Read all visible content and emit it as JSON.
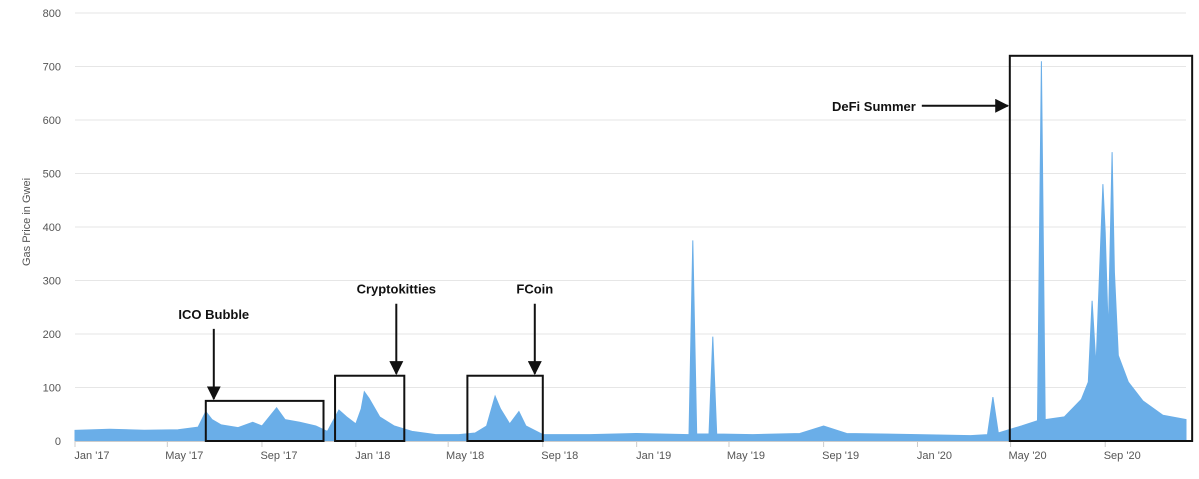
{
  "chart_data": {
    "type": "area",
    "title": "",
    "xlabel": "",
    "ylabel": "Gas Price in Gwei",
    "ylim": [
      0,
      800
    ],
    "y_ticks": [
      0,
      100,
      200,
      300,
      400,
      500,
      600,
      700,
      800
    ],
    "x_range": [
      "2017-01-01",
      "2020-12-15"
    ],
    "x_ticks": [
      {
        "date": "2017-01-01",
        "label": "Jan '17"
      },
      {
        "date": "2017-05-01",
        "label": "May '17"
      },
      {
        "date": "2017-09-01",
        "label": "Sep '17"
      },
      {
        "date": "2018-01-01",
        "label": "Jan '18"
      },
      {
        "date": "2018-05-01",
        "label": "May '18"
      },
      {
        "date": "2018-09-01",
        "label": "Sep '18"
      },
      {
        "date": "2019-01-01",
        "label": "Jan '19"
      },
      {
        "date": "2019-05-01",
        "label": "May '19"
      },
      {
        "date": "2019-09-01",
        "label": "Sep '19"
      },
      {
        "date": "2020-01-01",
        "label": "Jan '20"
      },
      {
        "date": "2020-05-01",
        "label": "May '20"
      },
      {
        "date": "2020-09-01",
        "label": "Sep '20"
      }
    ],
    "grid": "horizontal",
    "series_color": "#6aaee8",
    "series": [
      {
        "values": [
          [
            "2017-01-01",
            20
          ],
          [
            "2017-02-15",
            22
          ],
          [
            "2017-04-01",
            20
          ],
          [
            "2017-05-15",
            21
          ],
          [
            "2017-06-10",
            26
          ],
          [
            "2017-06-20",
            55
          ],
          [
            "2017-06-28",
            40
          ],
          [
            "2017-07-10",
            30
          ],
          [
            "2017-08-01",
            25
          ],
          [
            "2017-08-20",
            35
          ],
          [
            "2017-09-01",
            28
          ],
          [
            "2017-09-20",
            62
          ],
          [
            "2017-10-01",
            40
          ],
          [
            "2017-10-20",
            35
          ],
          [
            "2017-11-10",
            28
          ],
          [
            "2017-11-25",
            18
          ],
          [
            "2017-12-10",
            58
          ],
          [
            "2017-12-20",
            45
          ],
          [
            "2018-01-01",
            32
          ],
          [
            "2018-01-08",
            60
          ],
          [
            "2018-01-12",
            92
          ],
          [
            "2018-01-18",
            80
          ],
          [
            "2018-02-01",
            45
          ],
          [
            "2018-02-20",
            28
          ],
          [
            "2018-03-15",
            18
          ],
          [
            "2018-04-15",
            12
          ],
          [
            "2018-05-15",
            12
          ],
          [
            "2018-06-05",
            15
          ],
          [
            "2018-06-20",
            28
          ],
          [
            "2018-07-01",
            84
          ],
          [
            "2018-07-08",
            60
          ],
          [
            "2018-07-20",
            32
          ],
          [
            "2018-08-01",
            55
          ],
          [
            "2018-08-10",
            28
          ],
          [
            "2018-09-01",
            12
          ],
          [
            "2018-11-01",
            12
          ],
          [
            "2019-01-01",
            14
          ],
          [
            "2019-03-10",
            12
          ],
          [
            "2019-03-15",
            375
          ],
          [
            "2019-03-20",
            13
          ],
          [
            "2019-04-05",
            13
          ],
          [
            "2019-04-10",
            195
          ],
          [
            "2019-04-15",
            13
          ],
          [
            "2019-06-01",
            12
          ],
          [
            "2019-08-01",
            14
          ],
          [
            "2019-09-01",
            28
          ],
          [
            "2019-10-01",
            14
          ],
          [
            "2020-01-01",
            12
          ],
          [
            "2020-03-10",
            10
          ],
          [
            "2020-04-01",
            12
          ],
          [
            "2020-04-08",
            82
          ],
          [
            "2020-04-15",
            15
          ],
          [
            "2020-05-15",
            28
          ],
          [
            "2020-06-05",
            38
          ],
          [
            "2020-06-10",
            710
          ],
          [
            "2020-06-15",
            40
          ],
          [
            "2020-07-10",
            45
          ],
          [
            "2020-08-01",
            78
          ],
          [
            "2020-08-10",
            110
          ],
          [
            "2020-08-15",
            262
          ],
          [
            "2020-08-20",
            140
          ],
          [
            "2020-08-29",
            480
          ],
          [
            "2020-09-01",
            390
          ],
          [
            "2020-09-05",
            200
          ],
          [
            "2020-09-10",
            540
          ],
          [
            "2020-09-13",
            316
          ],
          [
            "2020-09-18",
            160
          ],
          [
            "2020-10-01",
            110
          ],
          [
            "2020-10-20",
            75
          ],
          [
            "2020-11-15",
            48
          ],
          [
            "2020-12-15",
            40
          ]
        ]
      }
    ],
    "annotations": [
      {
        "label": "ICO Bubble",
        "box_x": [
          "2017-06-20",
          "2017-11-20"
        ],
        "box_y": [
          0,
          75
        ]
      },
      {
        "label": "Cryptokitties",
        "box_x": [
          "2017-12-05",
          "2018-03-05"
        ],
        "box_y": [
          0,
          122
        ]
      },
      {
        "label": "FCoin",
        "box_x": [
          "2018-05-26",
          "2018-09-01"
        ],
        "box_y": [
          0,
          122
        ]
      },
      {
        "label": "DeFi Summer",
        "box_x": [
          "2020-04-30",
          "2020-12-23"
        ],
        "box_y": [
          0,
          720
        ]
      }
    ]
  }
}
